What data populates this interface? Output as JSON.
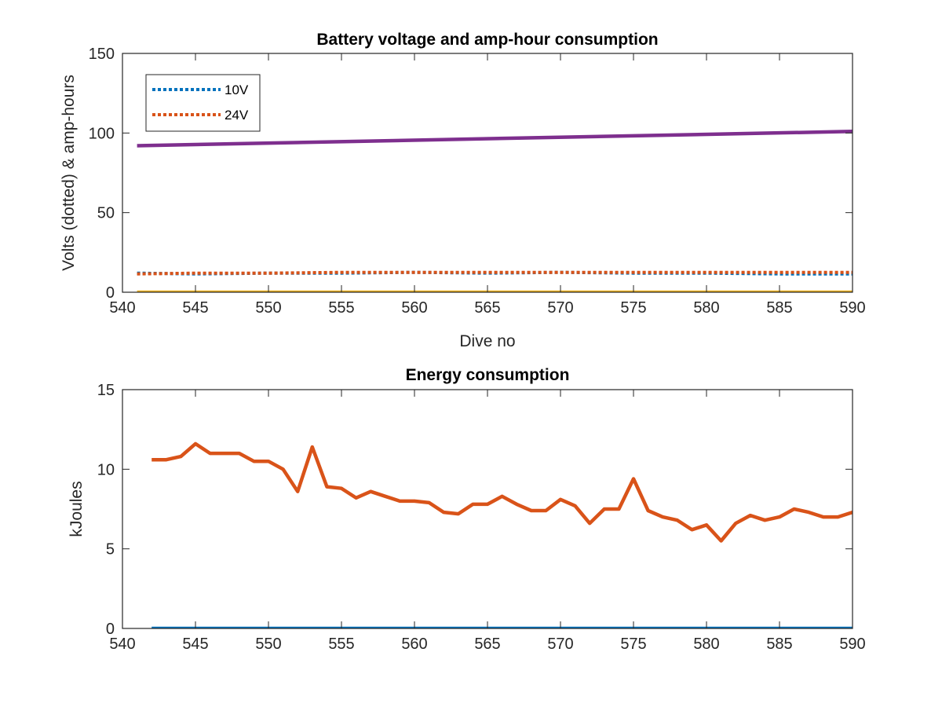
{
  "chart_data": [
    {
      "type": "line",
      "title": "Battery voltage and amp-hour consumption",
      "xlabel": "Dive no",
      "ylabel": "Volts (dotted) & amp-hours",
      "xlim": [
        540,
        590
      ],
      "ylim": [
        0,
        150
      ],
      "xticks": [
        "540",
        "545",
        "550",
        "555",
        "560",
        "565",
        "570",
        "575",
        "580",
        "585",
        "590"
      ],
      "yticks": [
        "0",
        "50",
        "100",
        "150"
      ],
      "grid": false,
      "legend_position": "top-left",
      "series": [
        {
          "name": "10V",
          "style": "dotted",
          "color": "#0072BD",
          "x": [
            541,
            545,
            550,
            555,
            560,
            565,
            570,
            575,
            580,
            585,
            590
          ],
          "y": [
            12,
            11.5,
            12,
            12,
            12.5,
            12,
            12.5,
            12,
            12,
            11.5,
            11.5
          ]
        },
        {
          "name": "24V",
          "style": "dotted",
          "color": "#D95319",
          "x": [
            541,
            545,
            550,
            555,
            560,
            565,
            570,
            575,
            580,
            585,
            590
          ],
          "y": [
            11.5,
            12,
            12,
            12.5,
            12.5,
            12.5,
            12.5,
            12.5,
            12.5,
            12.5,
            12.5
          ]
        },
        {
          "style": "solid",
          "color": "#7E2F8E",
          "x": [
            541,
            590
          ],
          "y": [
            92,
            101
          ]
        },
        {
          "style": "solid",
          "color": "#EDB120",
          "x": [
            541,
            590
          ],
          "y": [
            0,
            0
          ]
        }
      ]
    },
    {
      "type": "line",
      "title": "Energy consumption",
      "xlabel": "",
      "ylabel": "kJoules",
      "xlim": [
        540,
        590
      ],
      "ylim": [
        0,
        15
      ],
      "xticks": [
        "540",
        "545",
        "550",
        "555",
        "560",
        "565",
        "570",
        "575",
        "580",
        "585",
        "590"
      ],
      "yticks": [
        "0",
        "5",
        "10",
        "15"
      ],
      "grid": false,
      "series": [
        {
          "style": "solid",
          "color": "#D95319",
          "x": [
            542,
            543,
            544,
            545,
            546,
            547,
            548,
            549,
            550,
            551,
            552,
            553,
            554,
            555,
            556,
            557,
            558,
            559,
            560,
            561,
            562,
            563,
            564,
            565,
            566,
            567,
            568,
            569,
            570,
            571,
            572,
            573,
            574,
            575,
            576,
            577,
            578,
            579,
            580,
            581,
            582,
            583,
            584,
            585,
            586,
            587,
            588,
            589,
            590
          ],
          "y": [
            10.6,
            10.6,
            10.8,
            11.6,
            11.0,
            11.0,
            11.0,
            10.5,
            10.5,
            10.0,
            8.6,
            11.4,
            8.9,
            8.8,
            8.2,
            8.6,
            8.3,
            8.0,
            8.0,
            7.9,
            7.3,
            7.2,
            7.8,
            7.8,
            8.3,
            7.8,
            7.4,
            7.4,
            8.1,
            7.7,
            6.6,
            7.5,
            7.5,
            9.4,
            7.4,
            7.0,
            6.8,
            6.2,
            6.5,
            5.5,
            6.6,
            7.1,
            6.8,
            7.0,
            7.5,
            7.3,
            7.0,
            7.0,
            7.3
          ]
        },
        {
          "style": "solid",
          "color": "#0072BD",
          "x": [
            542,
            590
          ],
          "y": [
            0,
            0
          ]
        }
      ]
    }
  ]
}
